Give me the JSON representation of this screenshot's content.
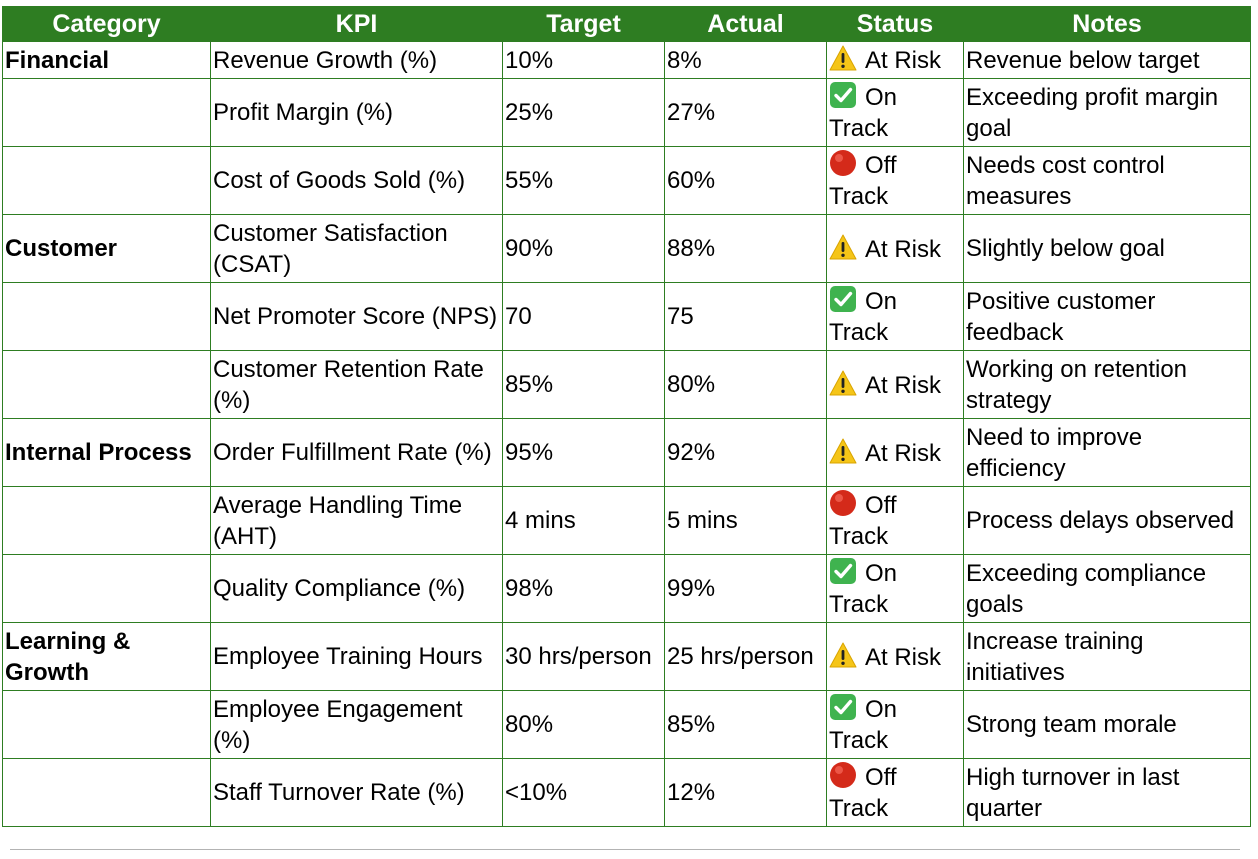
{
  "header": {
    "category": "Category",
    "kpi": "KPI",
    "target": "Target",
    "actual": "Actual",
    "status": "Status",
    "notes": "Notes"
  },
  "rows": [
    {
      "category": "Financial",
      "kpi": "Revenue Growth (%)",
      "target": "10%",
      "actual": "8%",
      "status_icon": "warning-icon",
      "status": "At Risk",
      "notes": "Revenue below target"
    },
    {
      "category": "",
      "kpi": "Profit Margin (%)",
      "target": "25%",
      "actual": "27%",
      "status_icon": "check-icon",
      "status": "On Track",
      "notes": "Exceeding profit margin goal"
    },
    {
      "category": "",
      "kpi": "Cost of Goods Sold (%)",
      "target": "55%",
      "actual": "60%",
      "status_icon": "red-circle-icon",
      "status": "Off Track",
      "notes": "Needs cost control measures"
    },
    {
      "category": "Customer",
      "kpi": "Customer Satisfaction (CSAT)",
      "target": "90%",
      "actual": "88%",
      "status_icon": "warning-icon",
      "status": "At Risk",
      "notes": "Slightly below goal"
    },
    {
      "category": "",
      "kpi": "Net Promoter Score (NPS)",
      "target": "70",
      "actual": "75",
      "status_icon": "check-icon",
      "status": "On Track",
      "notes": "Positive customer feedback"
    },
    {
      "category": "",
      "kpi": "Customer Retention Rate (%)",
      "target": "85%",
      "actual": "80%",
      "status_icon": "warning-icon",
      "status": "At Risk",
      "notes": "Working on retention strategy"
    },
    {
      "category": "Internal Process",
      "kpi": "Order Fulfillment Rate (%)",
      "target": "95%",
      "actual": "92%",
      "status_icon": "warning-icon",
      "status": "At Risk",
      "notes": "Need to improve efficiency"
    },
    {
      "category": "",
      "kpi": "Average Handling Time (AHT)",
      "target": "4 mins",
      "actual": "5 mins",
      "status_icon": "red-circle-icon",
      "status": "Off Track",
      "notes": "Process delays observed"
    },
    {
      "category": "",
      "kpi": "Quality Compliance (%)",
      "target": "98%",
      "actual": "99%",
      "status_icon": "check-icon",
      "status": "On Track",
      "notes": "Exceeding compliance goals"
    },
    {
      "category": "Learning & Growth",
      "kpi": "Employee Training Hours",
      "target": "30 hrs/person",
      "actual": "25 hrs/person",
      "status_icon": "warning-icon",
      "status": "At Risk",
      "notes": "Increase training initiatives"
    },
    {
      "category": "",
      "kpi": "Employee Engagement (%)",
      "target": "80%",
      "actual": "85%",
      "status_icon": "check-icon",
      "status": "On Track",
      "notes": "Strong team morale"
    },
    {
      "category": "",
      "kpi": "Staff Turnover Rate (%)",
      "target": "<10%",
      "actual": "12%",
      "status_icon": "red-circle-icon",
      "status": "Off Track",
      "notes": "High turnover in last quarter"
    }
  ],
  "colors": {
    "header_bg": "#2e7d22",
    "header_text": "#ffffff",
    "border": "#2e7d22",
    "warning": "#f5c518",
    "check": "#3fb34f",
    "off_track": "#d42a1a"
  }
}
